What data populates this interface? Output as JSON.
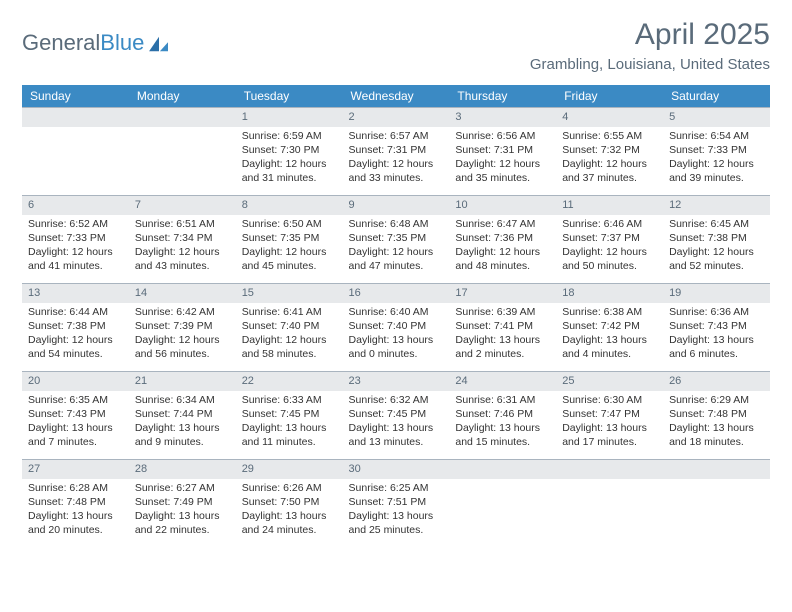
{
  "logo": {
    "text1": "General",
    "text2": "Blue"
  },
  "title": "April 2025",
  "location": "Grambling, Louisiana, United States",
  "colors": {
    "header_bg": "#3b8ac4",
    "header_text": "#ffffff",
    "daynum_bg": "#e7e9eb",
    "daynum_text": "#5a6b7a",
    "border": "#a9b4bf",
    "body_text": "#333333",
    "title_text": "#5a6b7a"
  },
  "weekdays": [
    "Sunday",
    "Monday",
    "Tuesday",
    "Wednesday",
    "Thursday",
    "Friday",
    "Saturday"
  ],
  "weeks": [
    [
      null,
      null,
      {
        "n": "1",
        "sr": "Sunrise: 6:59 AM",
        "ss": "Sunset: 7:30 PM",
        "dl1": "Daylight: 12 hours",
        "dl2": "and 31 minutes."
      },
      {
        "n": "2",
        "sr": "Sunrise: 6:57 AM",
        "ss": "Sunset: 7:31 PM",
        "dl1": "Daylight: 12 hours",
        "dl2": "and 33 minutes."
      },
      {
        "n": "3",
        "sr": "Sunrise: 6:56 AM",
        "ss": "Sunset: 7:31 PM",
        "dl1": "Daylight: 12 hours",
        "dl2": "and 35 minutes."
      },
      {
        "n": "4",
        "sr": "Sunrise: 6:55 AM",
        "ss": "Sunset: 7:32 PM",
        "dl1": "Daylight: 12 hours",
        "dl2": "and 37 minutes."
      },
      {
        "n": "5",
        "sr": "Sunrise: 6:54 AM",
        "ss": "Sunset: 7:33 PM",
        "dl1": "Daylight: 12 hours",
        "dl2": "and 39 minutes."
      }
    ],
    [
      {
        "n": "6",
        "sr": "Sunrise: 6:52 AM",
        "ss": "Sunset: 7:33 PM",
        "dl1": "Daylight: 12 hours",
        "dl2": "and 41 minutes."
      },
      {
        "n": "7",
        "sr": "Sunrise: 6:51 AM",
        "ss": "Sunset: 7:34 PM",
        "dl1": "Daylight: 12 hours",
        "dl2": "and 43 minutes."
      },
      {
        "n": "8",
        "sr": "Sunrise: 6:50 AM",
        "ss": "Sunset: 7:35 PM",
        "dl1": "Daylight: 12 hours",
        "dl2": "and 45 minutes."
      },
      {
        "n": "9",
        "sr": "Sunrise: 6:48 AM",
        "ss": "Sunset: 7:35 PM",
        "dl1": "Daylight: 12 hours",
        "dl2": "and 47 minutes."
      },
      {
        "n": "10",
        "sr": "Sunrise: 6:47 AM",
        "ss": "Sunset: 7:36 PM",
        "dl1": "Daylight: 12 hours",
        "dl2": "and 48 minutes."
      },
      {
        "n": "11",
        "sr": "Sunrise: 6:46 AM",
        "ss": "Sunset: 7:37 PM",
        "dl1": "Daylight: 12 hours",
        "dl2": "and 50 minutes."
      },
      {
        "n": "12",
        "sr": "Sunrise: 6:45 AM",
        "ss": "Sunset: 7:38 PM",
        "dl1": "Daylight: 12 hours",
        "dl2": "and 52 minutes."
      }
    ],
    [
      {
        "n": "13",
        "sr": "Sunrise: 6:44 AM",
        "ss": "Sunset: 7:38 PM",
        "dl1": "Daylight: 12 hours",
        "dl2": "and 54 minutes."
      },
      {
        "n": "14",
        "sr": "Sunrise: 6:42 AM",
        "ss": "Sunset: 7:39 PM",
        "dl1": "Daylight: 12 hours",
        "dl2": "and 56 minutes."
      },
      {
        "n": "15",
        "sr": "Sunrise: 6:41 AM",
        "ss": "Sunset: 7:40 PM",
        "dl1": "Daylight: 12 hours",
        "dl2": "and 58 minutes."
      },
      {
        "n": "16",
        "sr": "Sunrise: 6:40 AM",
        "ss": "Sunset: 7:40 PM",
        "dl1": "Daylight: 13 hours",
        "dl2": "and 0 minutes."
      },
      {
        "n": "17",
        "sr": "Sunrise: 6:39 AM",
        "ss": "Sunset: 7:41 PM",
        "dl1": "Daylight: 13 hours",
        "dl2": "and 2 minutes."
      },
      {
        "n": "18",
        "sr": "Sunrise: 6:38 AM",
        "ss": "Sunset: 7:42 PM",
        "dl1": "Daylight: 13 hours",
        "dl2": "and 4 minutes."
      },
      {
        "n": "19",
        "sr": "Sunrise: 6:36 AM",
        "ss": "Sunset: 7:43 PM",
        "dl1": "Daylight: 13 hours",
        "dl2": "and 6 minutes."
      }
    ],
    [
      {
        "n": "20",
        "sr": "Sunrise: 6:35 AM",
        "ss": "Sunset: 7:43 PM",
        "dl1": "Daylight: 13 hours",
        "dl2": "and 7 minutes."
      },
      {
        "n": "21",
        "sr": "Sunrise: 6:34 AM",
        "ss": "Sunset: 7:44 PM",
        "dl1": "Daylight: 13 hours",
        "dl2": "and 9 minutes."
      },
      {
        "n": "22",
        "sr": "Sunrise: 6:33 AM",
        "ss": "Sunset: 7:45 PM",
        "dl1": "Daylight: 13 hours",
        "dl2": "and 11 minutes."
      },
      {
        "n": "23",
        "sr": "Sunrise: 6:32 AM",
        "ss": "Sunset: 7:45 PM",
        "dl1": "Daylight: 13 hours",
        "dl2": "and 13 minutes."
      },
      {
        "n": "24",
        "sr": "Sunrise: 6:31 AM",
        "ss": "Sunset: 7:46 PM",
        "dl1": "Daylight: 13 hours",
        "dl2": "and 15 minutes."
      },
      {
        "n": "25",
        "sr": "Sunrise: 6:30 AM",
        "ss": "Sunset: 7:47 PM",
        "dl1": "Daylight: 13 hours",
        "dl2": "and 17 minutes."
      },
      {
        "n": "26",
        "sr": "Sunrise: 6:29 AM",
        "ss": "Sunset: 7:48 PM",
        "dl1": "Daylight: 13 hours",
        "dl2": "and 18 minutes."
      }
    ],
    [
      {
        "n": "27",
        "sr": "Sunrise: 6:28 AM",
        "ss": "Sunset: 7:48 PM",
        "dl1": "Daylight: 13 hours",
        "dl2": "and 20 minutes."
      },
      {
        "n": "28",
        "sr": "Sunrise: 6:27 AM",
        "ss": "Sunset: 7:49 PM",
        "dl1": "Daylight: 13 hours",
        "dl2": "and 22 minutes."
      },
      {
        "n": "29",
        "sr": "Sunrise: 6:26 AM",
        "ss": "Sunset: 7:50 PM",
        "dl1": "Daylight: 13 hours",
        "dl2": "and 24 minutes."
      },
      {
        "n": "30",
        "sr": "Sunrise: 6:25 AM",
        "ss": "Sunset: 7:51 PM",
        "dl1": "Daylight: 13 hours",
        "dl2": "and 25 minutes."
      },
      null,
      null,
      null
    ]
  ]
}
